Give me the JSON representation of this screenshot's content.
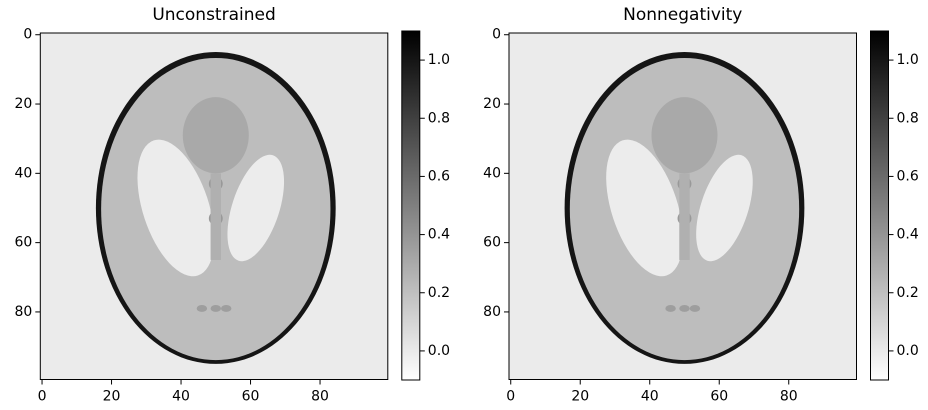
{
  "chart_data": [
    {
      "type": "image",
      "title": "Unconstrained",
      "cmap": "gray_r",
      "xlim": [
        -0.5,
        99.5
      ],
      "ylim": [
        99.5,
        -0.5
      ],
      "xticks": [
        0,
        20,
        40,
        60,
        80
      ],
      "yticks": [
        0,
        20,
        40,
        60,
        80
      ],
      "clim": [
        -0.1,
        1.1
      ],
      "cticks": [
        {
          "value": 0,
          "label": "0.0"
        },
        0.2,
        0.4,
        0.6,
        0.8,
        {
          "value": 1,
          "label": "1.0"
        }
      ]
    },
    {
      "type": "image",
      "title": "Nonnegativity",
      "cmap": "gray_r",
      "xlim": [
        -0.5,
        99.5
      ],
      "ylim": [
        99.5,
        -0.5
      ],
      "xticks": [
        0,
        20,
        40,
        60,
        80
      ],
      "yticks": [
        0,
        20,
        40,
        60,
        80
      ],
      "clim": [
        -0.1,
        1.1
      ],
      "cticks": [
        {
          "value": 0,
          "label": "0.0"
        },
        0.2,
        0.4,
        0.6,
        0.8,
        {
          "value": 1,
          "label": "1.0"
        }
      ]
    }
  ]
}
